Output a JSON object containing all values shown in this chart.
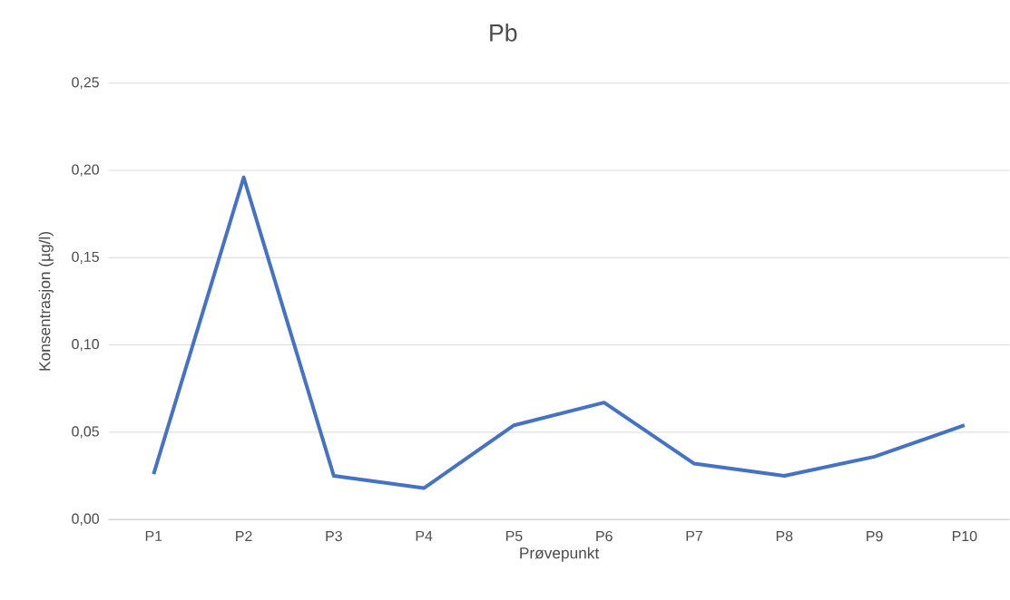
{
  "chart_data": {
    "type": "line",
    "title": "Pb",
    "xlabel": "Prøvepunkt",
    "ylabel": "Konsentrasjon (µg/l)",
    "categories": [
      "P1",
      "P2",
      "P3",
      "P4",
      "P5",
      "P6",
      "P7",
      "P8",
      "P9",
      "P10"
    ],
    "series": [
      {
        "color": "#4472c4",
        "values": [
          0.026,
          0.196,
          0.025,
          0.018,
          0.054,
          0.067,
          0.032,
          0.025,
          0.036,
          0.054
        ]
      }
    ],
    "ylim": [
      0,
      0.25
    ],
    "yticks": [
      {
        "value": 0,
        "label": "0,00"
      },
      {
        "value": 0.05,
        "label": "0,05"
      },
      {
        "value": 0.1,
        "label": "0,10"
      },
      {
        "value": 0.15,
        "label": "0,15"
      },
      {
        "value": 0.2,
        "label": "0,20"
      },
      {
        "value": 0.25,
        "label": "0,25"
      }
    ],
    "grid": "y",
    "marker": "none",
    "line_style": "solid"
  }
}
